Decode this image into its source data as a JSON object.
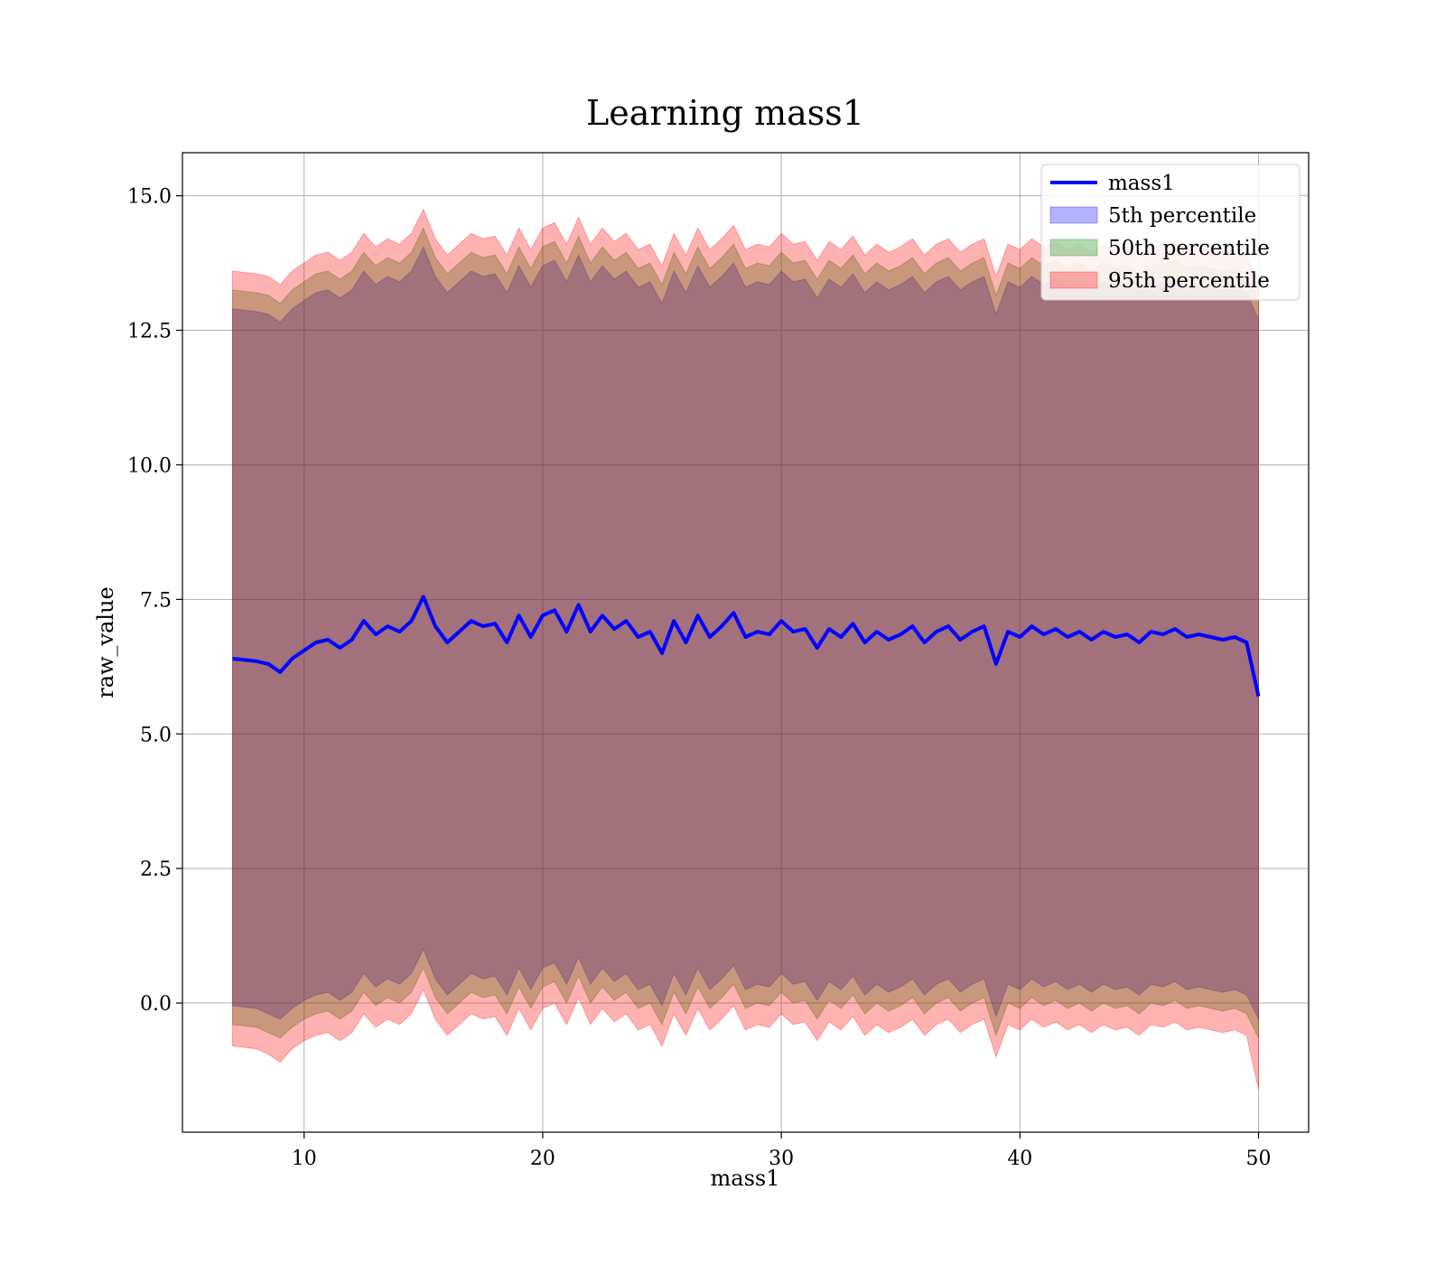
{
  "chart_data": {
    "type": "area",
    "title": "Learning mass1",
    "xlabel": "mass1",
    "ylabel": "raw_value",
    "xlim": [
      4.9,
      52.1
    ],
    "ylim": [
      -2.4,
      15.8
    ],
    "xticks": [
      10,
      20,
      30,
      40,
      50
    ],
    "xtick_labels": [
      "10",
      "20",
      "30",
      "40",
      "50"
    ],
    "yticks": [
      0,
      2.5,
      5,
      7.5,
      10,
      12.5,
      15
    ],
    "ytick_labels": [
      "0.0",
      "2.5",
      "5.0",
      "7.5",
      "10.0",
      "12.5",
      "15.0"
    ],
    "grid": true,
    "legend_position": "top-right",
    "line": {
      "name": "mass1",
      "color": "#0000ff",
      "x": [
        7,
        8,
        8.5,
        9,
        9.5,
        10,
        10.5,
        11,
        11.5,
        12,
        12.5,
        13,
        13.5,
        14,
        14.5,
        15,
        15.5,
        16,
        16.5,
        17,
        17.5,
        18,
        18.5,
        19,
        19.5,
        20,
        20.5,
        21,
        21.5,
        22,
        22.5,
        23,
        23.5,
        24,
        24.5,
        25,
        25.5,
        26,
        26.5,
        27,
        27.5,
        28,
        28.5,
        29,
        29.5,
        30,
        30.5,
        31,
        31.5,
        32,
        32.5,
        33,
        33.5,
        34,
        34.5,
        35,
        35.5,
        36,
        36.5,
        37,
        37.5,
        38,
        38.5,
        39,
        39.5,
        40,
        40.5,
        41,
        41.5,
        42,
        42.5,
        43,
        43.5,
        44,
        44.5,
        45,
        45.5,
        46,
        46.5,
        47,
        47.5,
        48,
        48.5,
        49,
        49.5,
        50
      ],
      "y": [
        6.4,
        6.35,
        6.3,
        6.15,
        6.4,
        6.55,
        6.7,
        6.75,
        6.6,
        6.75,
        7.1,
        6.85,
        7.0,
        6.9,
        7.1,
        7.55,
        7.0,
        6.7,
        6.9,
        7.1,
        7.0,
        7.05,
        6.7,
        7.2,
        6.8,
        7.2,
        7.3,
        6.9,
        7.4,
        6.9,
        7.2,
        6.95,
        7.1,
        6.8,
        6.9,
        6.5,
        7.1,
        6.7,
        7.2,
        6.8,
        7.0,
        7.25,
        6.8,
        6.9,
        6.85,
        7.1,
        6.9,
        6.95,
        6.6,
        6.95,
        6.8,
        7.05,
        6.7,
        6.9,
        6.75,
        6.85,
        7.0,
        6.7,
        6.9,
        7.0,
        6.75,
        6.9,
        7.0,
        6.3,
        6.9,
        6.8,
        7.0,
        6.85,
        6.95,
        6.8,
        6.9,
        6.75,
        6.9,
        6.8,
        6.85,
        6.7,
        6.9,
        6.85,
        6.95,
        6.8,
        6.85,
        6.8,
        6.75,
        6.8,
        6.7,
        5.7
      ]
    },
    "bands": [
      {
        "name": "5th percentile",
        "color": "#0000ff",
        "x": [
          7,
          8,
          8.5,
          9,
          9.5,
          10,
          10.5,
          11,
          11.5,
          12,
          12.5,
          13,
          13.5,
          14,
          14.5,
          15,
          15.5,
          16,
          16.5,
          17,
          17.5,
          18,
          18.5,
          19,
          19.5,
          20,
          20.5,
          21,
          21.5,
          22,
          22.5,
          23,
          23.5,
          24,
          24.5,
          25,
          25.5,
          26,
          26.5,
          27,
          27.5,
          28,
          28.5,
          29,
          29.5,
          30,
          30.5,
          31,
          31.5,
          32,
          32.5,
          33,
          33.5,
          34,
          34.5,
          35,
          35.5,
          36,
          36.5,
          37,
          37.5,
          38,
          38.5,
          39,
          39.5,
          40,
          40.5,
          41,
          41.5,
          42,
          42.5,
          43,
          43.5,
          44,
          44.5,
          45,
          45.5,
          46,
          46.5,
          47,
          47.5,
          48,
          48.5,
          49,
          49.5,
          50
        ],
        "lower": [
          -0.05,
          -0.1,
          -0.2,
          -0.3,
          -0.1,
          0.05,
          0.15,
          0.2,
          0.05,
          0.2,
          0.55,
          0.3,
          0.45,
          0.35,
          0.55,
          1.0,
          0.45,
          0.15,
          0.35,
          0.55,
          0.45,
          0.5,
          0.15,
          0.65,
          0.25,
          0.65,
          0.75,
          0.35,
          0.85,
          0.35,
          0.65,
          0.4,
          0.55,
          0.25,
          0.35,
          -0.05,
          0.55,
          0.15,
          0.65,
          0.25,
          0.45,
          0.7,
          0.25,
          0.35,
          0.3,
          0.55,
          0.35,
          0.4,
          0.05,
          0.4,
          0.25,
          0.5,
          0.15,
          0.35,
          0.2,
          0.3,
          0.45,
          0.15,
          0.35,
          0.45,
          0.2,
          0.35,
          0.45,
          -0.25,
          0.35,
          0.25,
          0.45,
          0.3,
          0.4,
          0.25,
          0.35,
          0.2,
          0.35,
          0.25,
          0.3,
          0.15,
          0.35,
          0.3,
          0.4,
          0.25,
          0.3,
          0.25,
          0.2,
          0.25,
          0.15,
          -0.3
        ],
        "upper": [
          12.9,
          12.85,
          12.8,
          12.65,
          12.9,
          13.05,
          13.2,
          13.25,
          13.1,
          13.25,
          13.6,
          13.35,
          13.5,
          13.4,
          13.6,
          14.05,
          13.5,
          13.2,
          13.4,
          13.6,
          13.5,
          13.55,
          13.2,
          13.7,
          13.3,
          13.7,
          13.8,
          13.4,
          13.9,
          13.4,
          13.7,
          13.45,
          13.6,
          13.3,
          13.4,
          13.0,
          13.6,
          13.2,
          13.7,
          13.3,
          13.5,
          13.75,
          13.3,
          13.4,
          13.35,
          13.6,
          13.4,
          13.45,
          13.1,
          13.45,
          13.3,
          13.55,
          13.2,
          13.4,
          13.25,
          13.35,
          13.5,
          13.2,
          13.4,
          13.5,
          13.25,
          13.4,
          13.5,
          12.8,
          13.4,
          13.3,
          13.5,
          13.35,
          13.45,
          13.3,
          13.4,
          13.25,
          13.4,
          13.3,
          13.35,
          13.2,
          13.4,
          13.35,
          13.45,
          13.3,
          13.35,
          13.3,
          13.25,
          13.3,
          13.2,
          12.7
        ]
      },
      {
        "name": "50th percentile",
        "color": "#008000",
        "x": [
          7,
          8,
          8.5,
          9,
          9.5,
          10,
          10.5,
          11,
          11.5,
          12,
          12.5,
          13,
          13.5,
          14,
          14.5,
          15,
          15.5,
          16,
          16.5,
          17,
          17.5,
          18,
          18.5,
          19,
          19.5,
          20,
          20.5,
          21,
          21.5,
          22,
          22.5,
          23,
          23.5,
          24,
          24.5,
          25,
          25.5,
          26,
          26.5,
          27,
          27.5,
          28,
          28.5,
          29,
          29.5,
          30,
          30.5,
          31,
          31.5,
          32,
          32.5,
          33,
          33.5,
          34,
          34.5,
          35,
          35.5,
          36,
          36.5,
          37,
          37.5,
          38,
          38.5,
          39,
          39.5,
          40,
          40.5,
          41,
          41.5,
          42,
          42.5,
          43,
          43.5,
          44,
          44.5,
          45,
          45.5,
          46,
          46.5,
          47,
          47.5,
          48,
          48.5,
          49,
          49.5,
          50
        ],
        "lower": [
          -0.4,
          -0.45,
          -0.55,
          -0.65,
          -0.45,
          -0.3,
          -0.2,
          -0.15,
          -0.3,
          -0.15,
          0.2,
          -0.05,
          0.1,
          0.0,
          0.2,
          0.65,
          0.1,
          -0.2,
          0.0,
          0.2,
          0.1,
          0.15,
          -0.2,
          0.3,
          -0.1,
          0.3,
          0.4,
          0.0,
          0.5,
          0.0,
          0.3,
          0.05,
          0.2,
          -0.1,
          0.0,
          -0.4,
          0.2,
          -0.2,
          0.3,
          -0.1,
          0.1,
          0.35,
          -0.1,
          0.0,
          -0.05,
          0.2,
          0.0,
          0.05,
          -0.3,
          0.05,
          -0.1,
          0.15,
          -0.2,
          0.0,
          -0.15,
          -0.05,
          0.1,
          -0.2,
          0.0,
          0.1,
          -0.15,
          0.0,
          0.1,
          -0.6,
          0.0,
          -0.1,
          0.1,
          -0.05,
          0.05,
          -0.1,
          0.0,
          -0.15,
          0.0,
          -0.1,
          -0.05,
          -0.2,
          0.0,
          -0.05,
          0.05,
          -0.1,
          -0.05,
          -0.1,
          -0.15,
          -0.1,
          -0.2,
          -0.65
        ],
        "upper": [
          13.25,
          13.2,
          13.15,
          13.0,
          13.25,
          13.4,
          13.55,
          13.6,
          13.45,
          13.6,
          13.95,
          13.7,
          13.85,
          13.75,
          13.95,
          14.4,
          13.85,
          13.55,
          13.75,
          13.95,
          13.85,
          13.9,
          13.55,
          14.05,
          13.65,
          14.05,
          14.15,
          13.75,
          14.25,
          13.75,
          14.05,
          13.8,
          13.95,
          13.65,
          13.75,
          13.35,
          13.95,
          13.55,
          14.05,
          13.65,
          13.85,
          14.1,
          13.65,
          13.75,
          13.7,
          13.95,
          13.75,
          13.8,
          13.45,
          13.8,
          13.65,
          13.9,
          13.55,
          13.75,
          13.6,
          13.7,
          13.85,
          13.55,
          13.75,
          13.85,
          13.6,
          13.75,
          13.85,
          13.15,
          13.75,
          13.65,
          13.85,
          13.7,
          13.8,
          13.65,
          13.75,
          13.6,
          13.75,
          13.65,
          13.7,
          13.55,
          13.75,
          13.7,
          13.8,
          13.65,
          13.7,
          13.65,
          13.6,
          13.65,
          13.55,
          13.05
        ]
      },
      {
        "name": "95th percentile",
        "color": "#ff0000",
        "x": [
          7,
          8,
          8.5,
          9,
          9.5,
          10,
          10.5,
          11,
          11.5,
          12,
          12.5,
          13,
          13.5,
          14,
          14.5,
          15,
          15.5,
          16,
          16.5,
          17,
          17.5,
          18,
          18.5,
          19,
          19.5,
          20,
          20.5,
          21,
          21.5,
          22,
          22.5,
          23,
          23.5,
          24,
          24.5,
          25,
          25.5,
          26,
          26.5,
          27,
          27.5,
          28,
          28.5,
          29,
          29.5,
          30,
          30.5,
          31,
          31.5,
          32,
          32.5,
          33,
          33.5,
          34,
          34.5,
          35,
          35.5,
          36,
          36.5,
          37,
          37.5,
          38,
          38.5,
          39,
          39.5,
          40,
          40.5,
          41,
          41.5,
          42,
          42.5,
          43,
          43.5,
          44,
          44.5,
          45,
          45.5,
          46,
          46.5,
          47,
          47.5,
          48,
          48.5,
          49,
          49.5,
          50
        ],
        "lower": [
          -0.8,
          -0.85,
          -0.95,
          -1.1,
          -0.85,
          -0.7,
          -0.6,
          -0.55,
          -0.7,
          -0.55,
          -0.2,
          -0.45,
          -0.3,
          -0.4,
          -0.2,
          0.25,
          -0.3,
          -0.6,
          -0.4,
          -0.2,
          -0.3,
          -0.25,
          -0.6,
          -0.1,
          -0.5,
          -0.1,
          0.0,
          -0.4,
          0.1,
          -0.4,
          -0.1,
          -0.35,
          -0.2,
          -0.5,
          -0.4,
          -0.8,
          -0.2,
          -0.6,
          -0.1,
          -0.5,
          -0.3,
          -0.05,
          -0.5,
          -0.4,
          -0.45,
          -0.2,
          -0.4,
          -0.35,
          -0.7,
          -0.35,
          -0.5,
          -0.25,
          -0.6,
          -0.4,
          -0.55,
          -0.45,
          -0.3,
          -0.6,
          -0.4,
          -0.3,
          -0.55,
          -0.4,
          -0.3,
          -1.0,
          -0.4,
          -0.5,
          -0.3,
          -0.45,
          -0.35,
          -0.5,
          -0.4,
          -0.55,
          -0.4,
          -0.5,
          -0.45,
          -0.6,
          -0.4,
          -0.45,
          -0.35,
          -0.5,
          -0.45,
          -0.5,
          -0.55,
          -0.5,
          -0.6,
          -1.6
        ],
        "upper": [
          13.6,
          13.55,
          13.5,
          13.35,
          13.6,
          13.75,
          13.9,
          13.95,
          13.8,
          13.95,
          14.3,
          14.05,
          14.2,
          14.1,
          14.3,
          14.75,
          14.2,
          13.9,
          14.1,
          14.3,
          14.2,
          14.25,
          13.9,
          14.4,
          14.0,
          14.4,
          14.5,
          14.1,
          14.6,
          14.1,
          14.4,
          14.15,
          14.3,
          14.0,
          14.1,
          13.7,
          14.3,
          13.9,
          14.4,
          14.0,
          14.2,
          14.45,
          14.0,
          14.1,
          14.05,
          14.3,
          14.1,
          14.15,
          13.8,
          14.15,
          14.0,
          14.25,
          13.9,
          14.1,
          13.95,
          14.05,
          14.2,
          13.9,
          14.1,
          14.2,
          13.95,
          14.1,
          14.2,
          13.5,
          14.1,
          14.0,
          14.2,
          14.05,
          14.15,
          14.0,
          14.1,
          13.95,
          14.1,
          14.0,
          14.05,
          13.9,
          14.1,
          14.05,
          14.15,
          14.0,
          14.05,
          14.0,
          13.95,
          14.0,
          13.9,
          13.4
        ]
      }
    ]
  }
}
